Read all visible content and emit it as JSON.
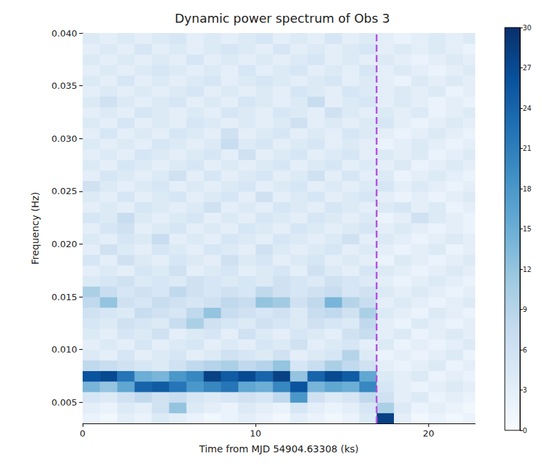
{
  "chart_data": {
    "type": "heatmap",
    "title": "Dynamic power spectrum of Obs 3",
    "x_label": "Time from MJD 54904.63308 (ks)",
    "y_label": "Frequency (Hz)",
    "xlim": [
      0,
      22.7
    ],
    "ylim": [
      0.003,
      0.04
    ],
    "xticks": [
      0,
      10,
      20
    ],
    "yticks": [
      0.005,
      {
        "value": 0.01,
        "label": "0.010"
      },
      0.015,
      {
        "value": 0.02,
        "label": "0.020"
      },
      0.025,
      {
        "value": 0.03,
        "label": "0.030"
      },
      0.035,
      {
        "value": 0.04,
        "label": "0.040"
      }
    ],
    "x_edges": [
      0,
      1,
      2,
      3,
      4,
      5,
      6,
      7,
      8,
      9,
      10,
      11,
      12,
      13,
      14,
      15,
      16,
      17,
      18,
      19,
      20,
      21,
      22,
      22.7
    ],
    "y_edges": [
      0.003,
      0.004,
      0.005,
      0.006,
      0.007,
      0.008,
      0.009,
      0.01,
      0.011,
      0.012,
      0.013,
      0.014,
      0.015,
      0.016,
      0.017,
      0.018,
      0.019,
      0.02,
      0.021,
      0.022,
      0.023,
      0.024,
      0.025,
      0.026,
      0.027,
      0.028,
      0.029,
      0.03,
      0.031,
      0.032,
      0.033,
      0.034,
      0.035,
      0.036,
      0.037,
      0.038,
      0.039,
      0.04
    ],
    "z": [
      [
        2,
        1,
        3,
        2,
        4,
        3,
        2,
        1,
        2,
        3,
        2,
        1,
        3,
        2,
        1,
        2,
        4,
        28,
        3,
        1,
        2,
        1,
        2
      ],
      [
        3,
        2,
        4,
        3,
        6,
        12,
        4,
        3,
        2,
        4,
        3,
        2,
        5,
        3,
        2,
        3,
        5,
        10,
        4,
        2,
        3,
        2,
        1
      ],
      [
        5,
        4,
        6,
        8,
        6,
        7,
        5,
        4,
        5,
        6,
        5,
        8,
        18,
        6,
        4,
        5,
        8,
        6,
        3,
        4,
        2,
        3,
        2
      ],
      [
        14,
        12,
        16,
        24,
        25,
        22,
        18,
        20,
        22,
        16,
        15,
        20,
        26,
        14,
        16,
        15,
        20,
        5,
        3,
        2,
        3,
        4,
        3
      ],
      [
        26,
        27,
        22,
        15,
        14,
        18,
        20,
        28,
        25,
        27,
        24,
        28,
        12,
        24,
        27,
        25,
        16,
        4,
        3,
        4,
        2,
        3,
        2
      ],
      [
        8,
        7,
        6,
        5,
        4,
        6,
        8,
        9,
        10,
        8,
        9,
        12,
        5,
        7,
        10,
        8,
        6,
        3,
        2,
        3,
        4,
        2,
        3
      ],
      [
        4,
        3,
        5,
        3,
        4,
        5,
        3,
        4,
        6,
        5,
        4,
        6,
        3,
        4,
        5,
        9,
        4,
        2,
        3,
        2,
        3,
        4,
        2
      ],
      [
        3,
        4,
        3,
        5,
        3,
        4,
        5,
        3,
        4,
        3,
        5,
        4,
        6,
        3,
        4,
        5,
        3,
        4,
        2,
        3,
        2,
        3,
        4
      ],
      [
        4,
        3,
        5,
        4,
        6,
        3,
        4,
        5,
        3,
        6,
        4,
        3,
        5,
        4,
        3,
        6,
        7,
        3,
        4,
        2,
        3,
        4,
        3
      ],
      [
        5,
        4,
        6,
        5,
        4,
        7,
        10,
        6,
        5,
        4,
        6,
        5,
        4,
        6,
        5,
        4,
        8,
        3,
        2,
        4,
        3,
        2,
        3
      ],
      [
        6,
        5,
        4,
        7,
        6,
        5,
        8,
        12,
        7,
        6,
        5,
        6,
        4,
        7,
        8,
        6,
        10,
        4,
        3,
        2,
        4,
        3,
        2
      ],
      [
        8,
        12,
        6,
        5,
        7,
        6,
        5,
        6,
        8,
        7,
        12,
        11,
        6,
        8,
        14,
        9,
        7,
        3,
        4,
        3,
        2,
        3,
        4
      ],
      [
        10,
        7,
        5,
        6,
        5,
        8,
        6,
        5,
        6,
        5,
        8,
        6,
        5,
        6,
        7,
        5,
        6,
        4,
        3,
        4,
        3,
        2,
        3
      ],
      [
        4,
        5,
        6,
        4,
        5,
        4,
        6,
        5,
        4,
        5,
        4,
        6,
        5,
        4,
        6,
        5,
        4,
        3,
        2,
        3,
        4,
        3,
        2
      ],
      [
        3,
        4,
        3,
        5,
        4,
        6,
        3,
        4,
        5,
        3,
        4,
        5,
        3,
        6,
        4,
        3,
        5,
        4,
        3,
        2,
        3,
        4,
        3
      ],
      [
        5,
        3,
        6,
        4,
        3,
        5,
        4,
        3,
        6,
        4,
        5,
        3,
        4,
        5,
        3,
        4,
        3,
        2,
        4,
        3,
        2,
        3,
        4
      ],
      [
        3,
        6,
        4,
        3,
        5,
        4,
        3,
        5,
        4,
        3,
        6,
        4,
        3,
        4,
        5,
        3,
        4,
        3,
        2,
        3,
        4,
        2,
        3
      ],
      [
        4,
        3,
        5,
        4,
        7,
        3,
        4,
        3,
        5,
        4,
        3,
        5,
        4,
        3,
        4,
        6,
        3,
        4,
        3,
        2,
        3,
        4,
        3
      ],
      [
        3,
        5,
        6,
        3,
        4,
        5,
        3,
        4,
        3,
        5,
        4,
        3,
        5,
        4,
        3,
        4,
        5,
        3,
        4,
        3,
        2,
        3,
        2
      ],
      [
        5,
        4,
        7,
        4,
        3,
        4,
        5,
        3,
        4,
        3,
        5,
        4,
        3,
        5,
        4,
        3,
        4,
        2,
        3,
        6,
        4,
        3,
        2
      ],
      [
        3,
        4,
        3,
        5,
        4,
        3,
        4,
        6,
        3,
        4,
        3,
        5,
        4,
        3,
        5,
        4,
        3,
        4,
        5,
        3,
        4,
        2,
        3
      ],
      [
        4,
        3,
        5,
        3,
        4,
        5,
        3,
        4,
        5,
        3,
        6,
        3,
        4,
        5,
        3,
        4,
        5,
        3,
        2,
        3,
        2,
        3,
        4
      ],
      [
        6,
        4,
        3,
        4,
        5,
        3,
        4,
        3,
        4,
        5,
        3,
        4,
        5,
        3,
        4,
        3,
        4,
        5,
        3,
        4,
        3,
        2,
        3
      ],
      [
        3,
        5,
        4,
        3,
        4,
        6,
        3,
        5,
        3,
        4,
        5,
        3,
        4,
        6,
        3,
        5,
        3,
        4,
        2,
        3,
        4,
        3,
        2
      ],
      [
        4,
        3,
        5,
        4,
        3,
        4,
        5,
        3,
        4,
        3,
        4,
        5,
        3,
        4,
        5,
        3,
        4,
        3,
        4,
        2,
        3,
        4,
        3
      ],
      [
        3,
        4,
        3,
        5,
        4,
        3,
        4,
        5,
        3,
        6,
        3,
        4,
        5,
        3,
        4,
        5,
        3,
        4,
        3,
        4,
        2,
        3,
        4
      ],
      [
        4,
        3,
        4,
        3,
        5,
        4,
        3,
        4,
        7,
        4,
        5,
        3,
        4,
        5,
        3,
        4,
        3,
        2,
        3,
        4,
        3,
        2,
        3
      ],
      [
        3,
        5,
        3,
        4,
        3,
        5,
        4,
        3,
        6,
        3,
        4,
        5,
        3,
        4,
        3,
        5,
        4,
        3,
        2,
        3,
        4,
        3,
        2
      ],
      [
        4,
        3,
        5,
        3,
        4,
        3,
        5,
        4,
        3,
        4,
        3,
        4,
        6,
        3,
        4,
        3,
        4,
        5,
        3,
        2,
        3,
        4,
        3
      ],
      [
        3,
        4,
        3,
        5,
        4,
        3,
        4,
        3,
        5,
        4,
        3,
        5,
        4,
        3,
        6,
        4,
        3,
        4,
        3,
        4,
        2,
        3,
        4
      ],
      [
        4,
        6,
        4,
        3,
        4,
        5,
        3,
        4,
        3,
        5,
        4,
        3,
        4,
        7,
        3,
        4,
        5,
        3,
        4,
        3,
        2,
        3,
        2
      ],
      [
        3,
        4,
        3,
        4,
        3,
        4,
        5,
        3,
        4,
        3,
        4,
        3,
        5,
        4,
        3,
        5,
        4,
        3,
        4,
        3,
        4,
        2,
        3
      ],
      [
        4,
        3,
        5,
        3,
        4,
        3,
        4,
        5,
        3,
        4,
        5,
        4,
        3,
        4,
        5,
        3,
        4,
        3,
        2,
        4,
        3,
        4,
        3
      ],
      [
        3,
        4,
        3,
        4,
        5,
        4,
        3,
        4,
        3,
        5,
        3,
        4,
        5,
        3,
        4,
        3,
        5,
        3,
        4,
        3,
        2,
        3,
        4
      ],
      [
        4,
        3,
        4,
        3,
        4,
        3,
        5,
        3,
        4,
        3,
        4,
        3,
        4,
        5,
        3,
        4,
        3,
        4,
        3,
        2,
        3,
        4,
        3
      ],
      [
        3,
        4,
        3,
        5,
        3,
        4,
        3,
        4,
        5,
        4,
        3,
        5,
        3,
        4,
        3,
        4,
        5,
        3,
        4,
        3,
        4,
        3,
        2
      ],
      [
        4,
        3,
        4,
        3,
        4,
        5,
        3,
        4,
        3,
        4,
        5,
        3,
        4,
        3,
        5,
        3,
        4,
        3,
        2,
        3,
        4,
        3,
        4
      ]
    ],
    "colorbar": {
      "range": [
        0,
        30
      ],
      "ticks": [
        0,
        3,
        6,
        9,
        12,
        15,
        18,
        21,
        24,
        27,
        30
      ]
    },
    "vline": {
      "x": 17.0,
      "color": "#b44fe0",
      "line_style": "dashed"
    }
  }
}
